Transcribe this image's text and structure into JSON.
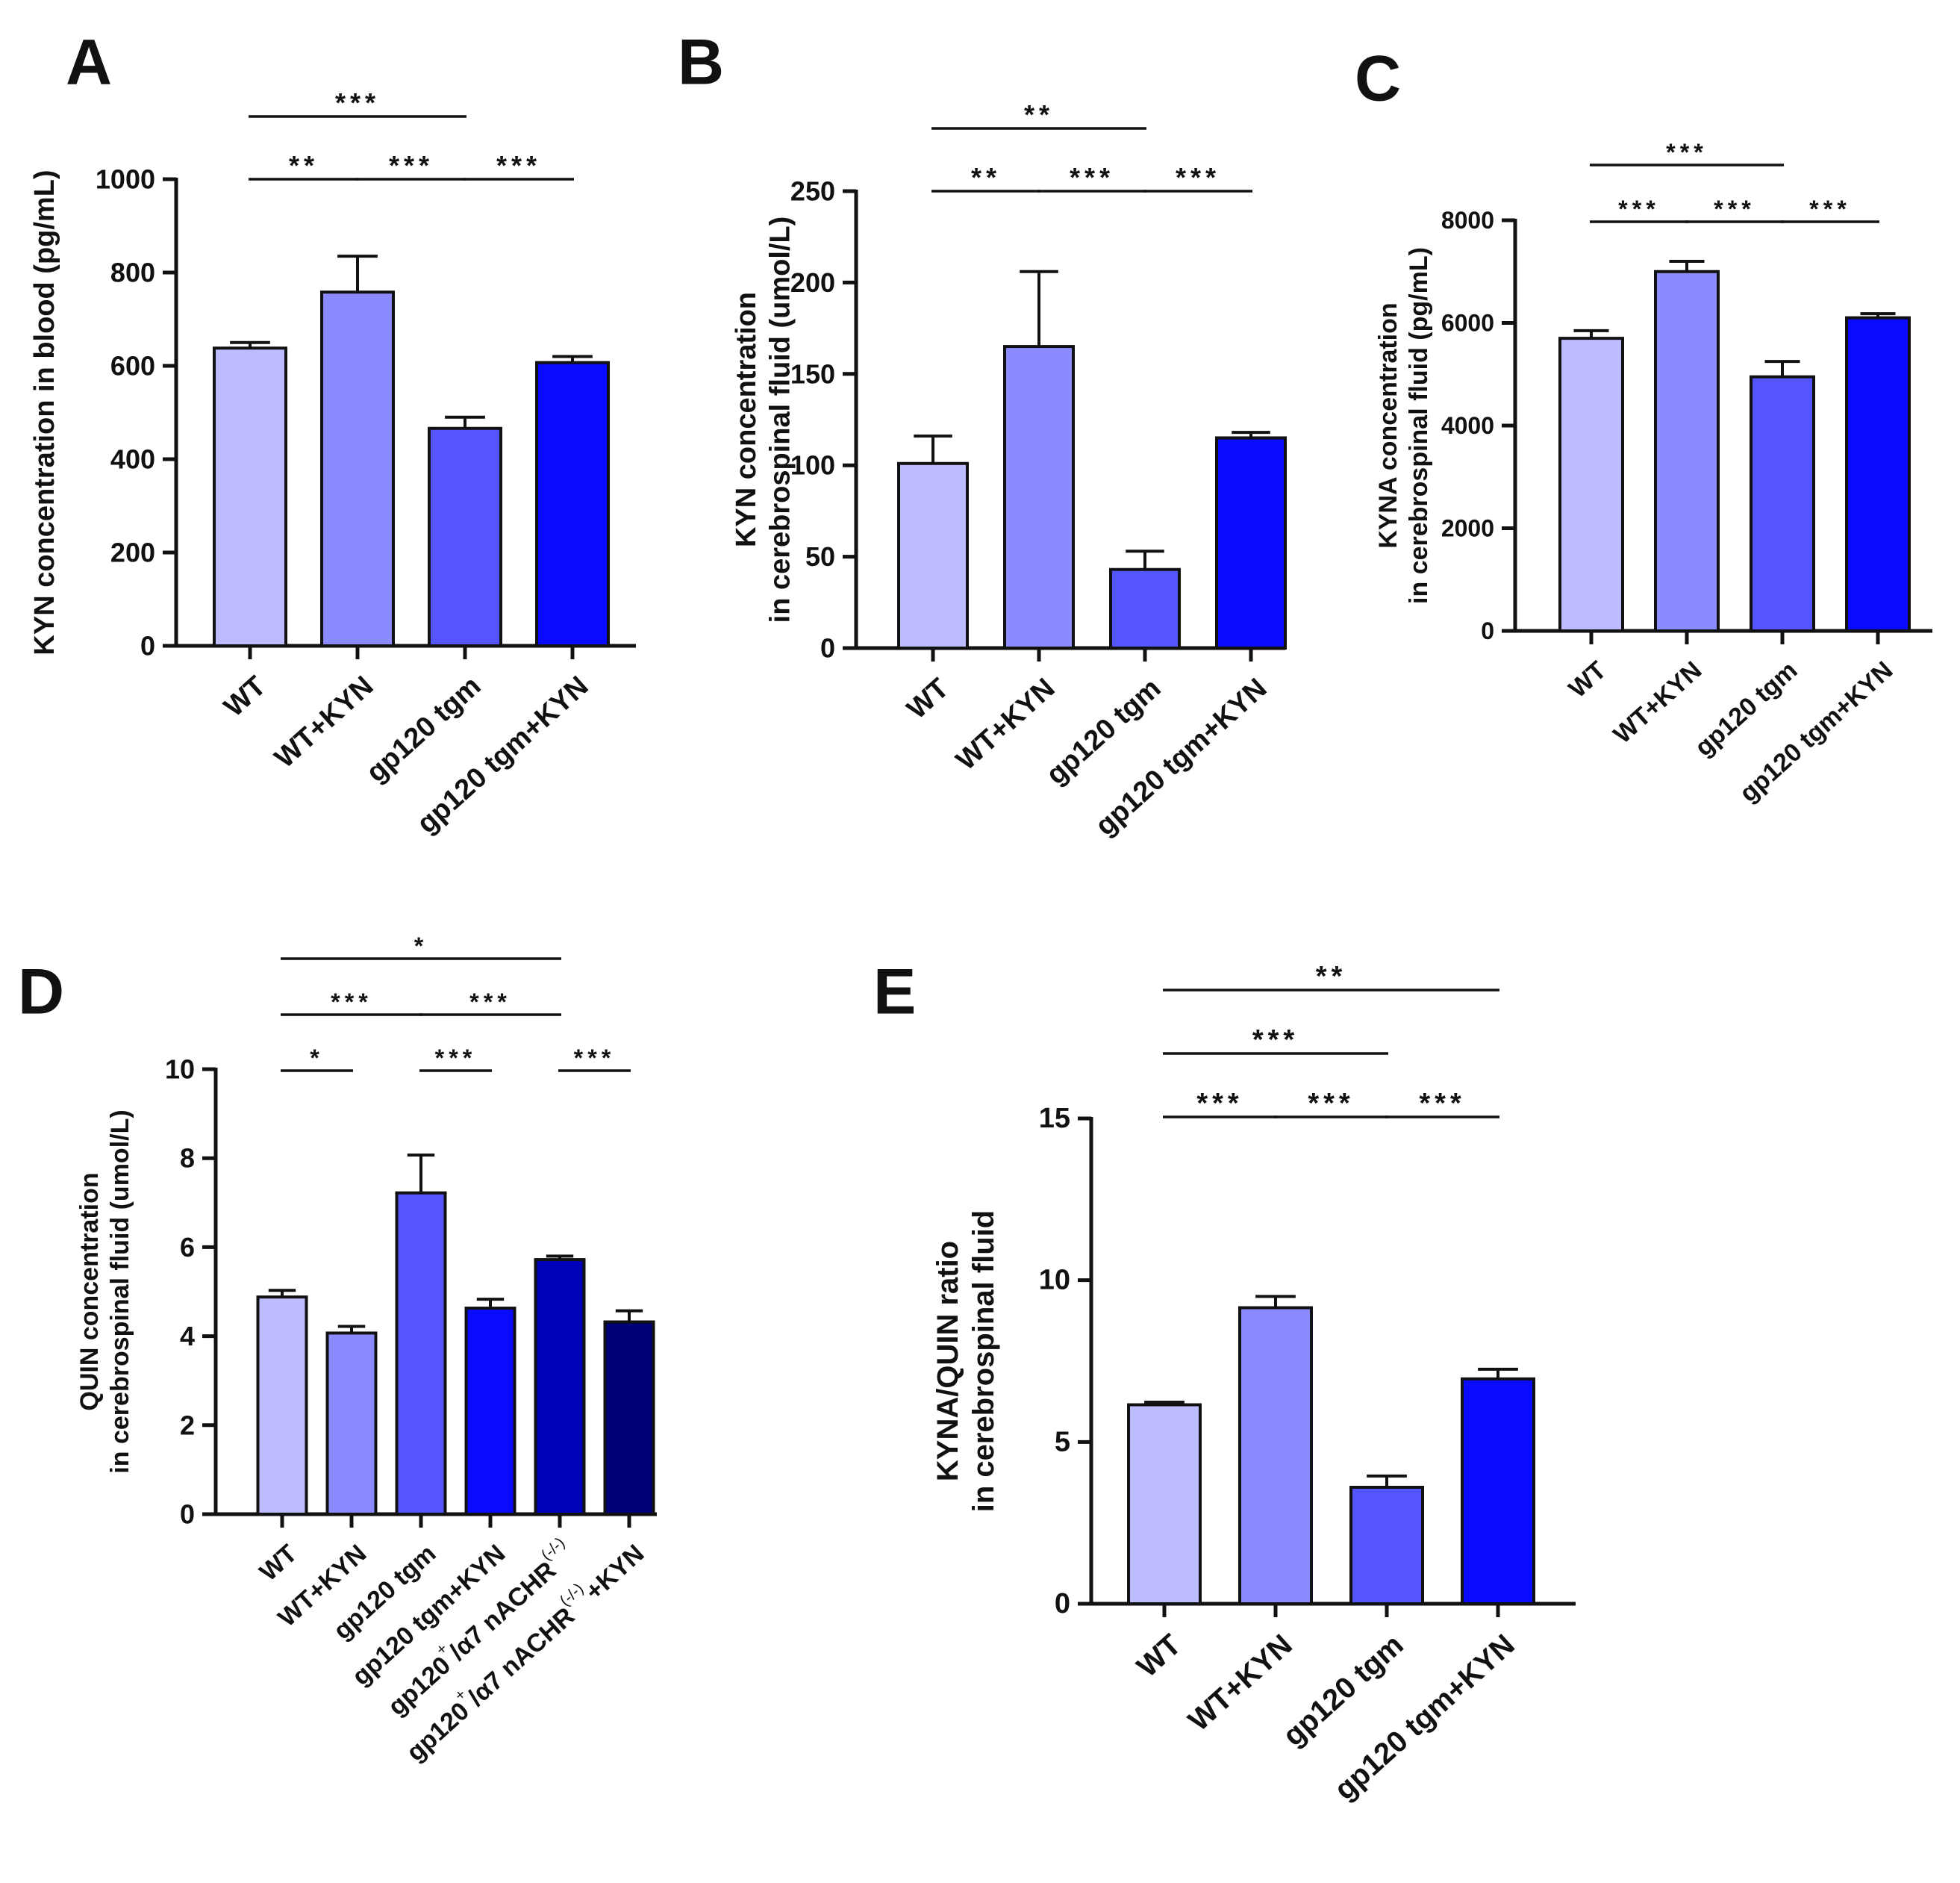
{
  "figure": {
    "palette": [
      "#bcbcff",
      "#8b8bff",
      "#5555ff",
      "#0a0aff",
      "#0000bb",
      "#000077"
    ],
    "text_color": "#111111"
  },
  "chart_data": [
    {
      "panel": "A",
      "type": "bar",
      "title": "",
      "xlabel": "",
      "ylabel": "KYN concentration in blood (pg/mL)",
      "ylabel_lines": [
        "KYN concentration in blood (pg/mL)"
      ],
      "ylim": [
        0,
        1000
      ],
      "yticks": [
        0,
        200,
        400,
        600,
        800,
        1000
      ],
      "ytick_labels": [
        "0",
        "200",
        "400",
        "600",
        "800",
        "1000"
      ],
      "categories": [
        "WT",
        "WT+KYN",
        "gp120 tgm",
        "gp120 tgm+KYN"
      ],
      "category_parts": [
        [
          {
            "t": "WT"
          }
        ],
        [
          {
            "t": "WT+KYN"
          }
        ],
        [
          {
            "t": "gp120 tgm"
          }
        ],
        [
          {
            "t": "gp120 tgm+KYN"
          }
        ]
      ],
      "values": [
        638,
        758,
        466,
        607
      ],
      "errors": [
        12,
        77,
        24,
        13
      ],
      "colors": [
        "#bcbcff",
        "#8b8bff",
        "#5555ff",
        "#0a0aff"
      ],
      "significance": [
        {
          "from": 0,
          "to": 2,
          "label": "***",
          "level": 3
        },
        {
          "from": 0,
          "to": 1,
          "label": "**",
          "level": 1
        },
        {
          "from": 1,
          "to": 2,
          "label": "***",
          "level": 1
        },
        {
          "from": 2,
          "to": 3,
          "label": "***",
          "level": 1
        }
      ]
    },
    {
      "panel": "B",
      "type": "bar",
      "title": "",
      "xlabel": "",
      "ylabel": "KYN concentration in cerebrospinal fluid (umol/L)",
      "ylabel_lines": [
        "KYN concentration",
        "in cerebrospinal fluid (umol/L)"
      ],
      "ylim": [
        0,
        250
      ],
      "yticks": [
        0,
        50,
        100,
        150,
        200,
        250
      ],
      "ytick_labels": [
        "0",
        "50",
        "100",
        "150",
        "200",
        "250"
      ],
      "categories": [
        "WT",
        "WT+KYN",
        "gp120 tgm",
        "gp120 tgm+KYN"
      ],
      "category_parts": [
        [
          {
            "t": "WT"
          }
        ],
        [
          {
            "t": "WT+KYN"
          }
        ],
        [
          {
            "t": "gp120 tgm"
          }
        ],
        [
          {
            "t": "gp120 tgm+KYN"
          }
        ]
      ],
      "values": [
        101,
        165,
        43,
        115
      ],
      "errors": [
        15,
        41,
        10,
        3
      ],
      "colors": [
        "#bcbcff",
        "#8b8bff",
        "#5555ff",
        "#0a0aff"
      ],
      "significance": [
        {
          "from": 0,
          "to": 2,
          "label": "**",
          "level": 3
        },
        {
          "from": 0,
          "to": 1,
          "label": "**",
          "level": 1
        },
        {
          "from": 1,
          "to": 2,
          "label": "***",
          "level": 1
        },
        {
          "from": 2,
          "to": 3,
          "label": "***",
          "level": 1
        }
      ]
    },
    {
      "panel": "C",
      "type": "bar",
      "title": "",
      "xlabel": "",
      "ylabel": "KYNA concentration in cerebrospinal fluid (pg/mL)",
      "ylabel_lines": [
        "KYNA concentration",
        "in cerebrospinal fluid (pg/mL)"
      ],
      "ylim": [
        0,
        8000
      ],
      "yticks": [
        0,
        2000,
        4000,
        6000,
        8000
      ],
      "ytick_labels": [
        "0",
        "2000",
        "4000",
        "6000",
        "8000"
      ],
      "categories": [
        "WT",
        "WT+KYN",
        "gp120 tgm",
        "gp120 tgm+KYN"
      ],
      "category_parts": [
        [
          {
            "t": "WT"
          }
        ],
        [
          {
            "t": "WT+KYN"
          }
        ],
        [
          {
            "t": "gp120 tgm"
          }
        ],
        [
          {
            "t": "gp120 tgm+KYN"
          }
        ]
      ],
      "values": [
        5700,
        7000,
        4950,
        6100
      ],
      "errors": [
        150,
        200,
        300,
        80
      ],
      "colors": [
        "#bcbcff",
        "#8b8bff",
        "#5555ff",
        "#0a0aff"
      ],
      "significance": [
        {
          "from": 0,
          "to": 2,
          "label": "***",
          "level": 3
        },
        {
          "from": 0,
          "to": 1,
          "label": "***",
          "level": 1
        },
        {
          "from": 1,
          "to": 2,
          "label": "***",
          "level": 1
        },
        {
          "from": 2,
          "to": 3,
          "label": "***",
          "level": 1
        }
      ]
    },
    {
      "panel": "D",
      "type": "bar",
      "title": "",
      "xlabel": "",
      "ylabel": "QUIN concentration in cerebrospinal fluid (umol/L)",
      "ylabel_lines": [
        "QUIN concentration",
        "in cerebrospinal fluid (umol/L)"
      ],
      "ylim": [
        0,
        10
      ],
      "yticks": [
        0,
        2,
        4,
        6,
        8,
        10
      ],
      "ytick_labels": [
        "0",
        "2",
        "4",
        "6",
        "8",
        "10"
      ],
      "categories": [
        "WT",
        "WT+KYN",
        "gp120 tgm",
        "gp120 tgm+KYN",
        "gp120+/α7 nACHR(-/-)",
        "gp120+/α7 nACHR(-/-)+KYN"
      ],
      "category_parts": [
        [
          {
            "t": "WT"
          }
        ],
        [
          {
            "t": "WT+KYN"
          }
        ],
        [
          {
            "t": "gp120 tgm"
          }
        ],
        [
          {
            "t": "gp120 tgm+KYN"
          }
        ],
        [
          {
            "t": "gp120"
          },
          {
            "t": "+",
            "sup": true
          },
          {
            "t": "/α7 nACHR"
          },
          {
            "t": "(-/-)",
            "sup": true
          }
        ],
        [
          {
            "t": "gp120"
          },
          {
            "t": "+",
            "sup": true
          },
          {
            "t": "/α7 nACHR"
          },
          {
            "t": "(-/-)",
            "sup": true
          },
          {
            "t": "+KYN"
          }
        ]
      ],
      "values": [
        4.88,
        4.07,
        7.22,
        4.63,
        5.72,
        4.32
      ],
      "errors": [
        0.15,
        0.15,
        0.85,
        0.2,
        0.08,
        0.25
      ],
      "colors": [
        "#bcbcff",
        "#8b8bff",
        "#5555ff",
        "#0a0aff",
        "#0000bb",
        "#000077"
      ],
      "significance": [
        {
          "from": 0,
          "to": 4,
          "label": "*",
          "level": 5
        },
        {
          "from": 0,
          "to": 2,
          "label": "***",
          "level": 3
        },
        {
          "from": 2,
          "to": 4,
          "label": "***",
          "level": 3
        },
        {
          "from": 0,
          "to": 1,
          "label": "*",
          "level": 1
        },
        {
          "from": 2,
          "to": 3,
          "label": "***",
          "level": 1
        },
        {
          "from": 4,
          "to": 5,
          "label": "***",
          "level": 1
        }
      ]
    },
    {
      "panel": "E",
      "type": "bar",
      "title": "",
      "xlabel": "",
      "ylabel": "KYNA/QUIN ratio in cerebrospinal fluid",
      "ylabel_lines": [
        "KYNA/QUIN ratio",
        "in cerebrospinal fluid"
      ],
      "ylim": [
        0,
        15
      ],
      "yticks": [
        0,
        5,
        10,
        15
      ],
      "ytick_labels": [
        "0",
        "5",
        "10",
        "15"
      ],
      "categories": [
        "WT",
        "WT+KYN",
        "gp120 tgm",
        "gp120 tgm+KYN"
      ],
      "category_parts": [
        [
          {
            "t": "WT"
          }
        ],
        [
          {
            "t": "WT+KYN"
          }
        ],
        [
          {
            "t": "gp120 tgm"
          }
        ],
        [
          {
            "t": "gp120 tgm+KYN"
          }
        ]
      ],
      "values": [
        6.15,
        9.15,
        3.6,
        6.95
      ],
      "errors": [
        0.08,
        0.35,
        0.35,
        0.3
      ],
      "colors": [
        "#bcbcff",
        "#8b8bff",
        "#5555ff",
        "#0a0aff"
      ],
      "significance": [
        {
          "from": 0,
          "to": 3,
          "label": "**",
          "level": 5
        },
        {
          "from": 0,
          "to": 2,
          "label": "***",
          "level": 3
        },
        {
          "from": 0,
          "to": 1,
          "label": "***",
          "level": 1
        },
        {
          "from": 1,
          "to": 2,
          "label": "***",
          "level": 1
        },
        {
          "from": 2,
          "to": 3,
          "label": "***",
          "level": 1
        }
      ]
    }
  ]
}
